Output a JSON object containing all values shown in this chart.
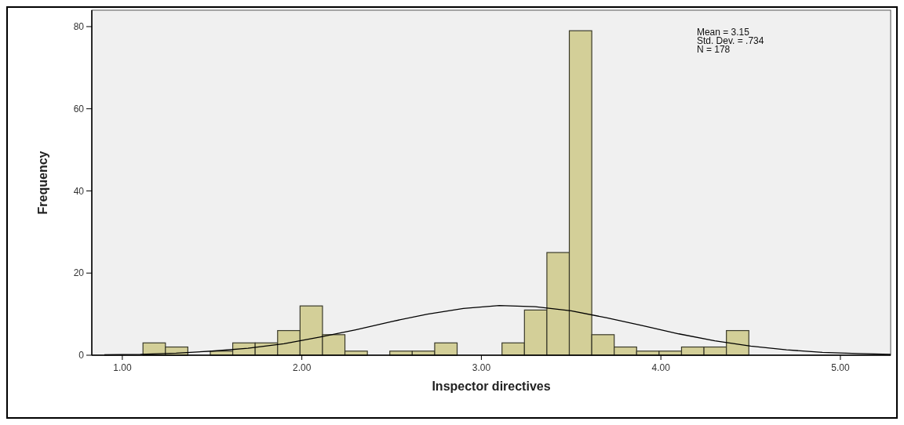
{
  "chart_data": {
    "type": "histogram",
    "xlabel": "Inspector directives",
    "ylabel": "Frequency",
    "bins": [
      1.115,
      1.24,
      1.365,
      1.49,
      1.615,
      1.74,
      1.865,
      1.99,
      2.115,
      2.24,
      2.365,
      2.49,
      2.615,
      2.74,
      2.865,
      2.99,
      3.115,
      3.24,
      3.365,
      3.49,
      3.615,
      3.74,
      3.865,
      3.99,
      4.115,
      4.24,
      4.365,
      4.49
    ],
    "values": [
      3,
      2,
      0,
      1,
      3,
      3,
      6,
      12,
      5,
      1,
      0,
      1,
      1,
      3,
      0,
      0,
      3,
      11,
      25,
      79,
      5,
      2,
      1,
      1,
      2,
      2,
      6
    ],
    "color": "#d3cf98",
    "series": [
      {
        "type": "line",
        "color": "#000000",
        "x": [
          0.9,
          1.1,
          1.3,
          1.5,
          1.7,
          1.9,
          2.1,
          2.3,
          2.5,
          2.7,
          2.9,
          3.1,
          3.3,
          3.5,
          3.7,
          3.9,
          4.1,
          4.3,
          4.5,
          4.7,
          4.9,
          5.1,
          5.28
        ],
        "values": [
          0.1,
          0.2,
          0.5,
          1.0,
          1.7,
          2.8,
          4.4,
          6.2,
          8.2,
          10.0,
          11.4,
          12.1,
          11.8,
          10.8,
          9.1,
          7.2,
          5.2,
          3.5,
          2.2,
          1.3,
          0.7,
          0.4,
          0.2
        ]
      }
    ],
    "xlim": [
      0.83,
      5.28
    ],
    "ylim": [
      0,
      84
    ],
    "xticks": [
      {
        "value": 1,
        "label": "1.00"
      },
      {
        "value": 2,
        "label": "2.00"
      },
      {
        "value": 3,
        "label": "3.00"
      },
      {
        "value": 4,
        "label": "4.00"
      },
      {
        "value": 5,
        "label": "5.00"
      }
    ],
    "yticks": [
      0,
      20,
      40,
      60,
      80
    ],
    "annotations": [
      "Mean = 3.15",
      "Std. Dev. = .734",
      "N = 178"
    ]
  }
}
